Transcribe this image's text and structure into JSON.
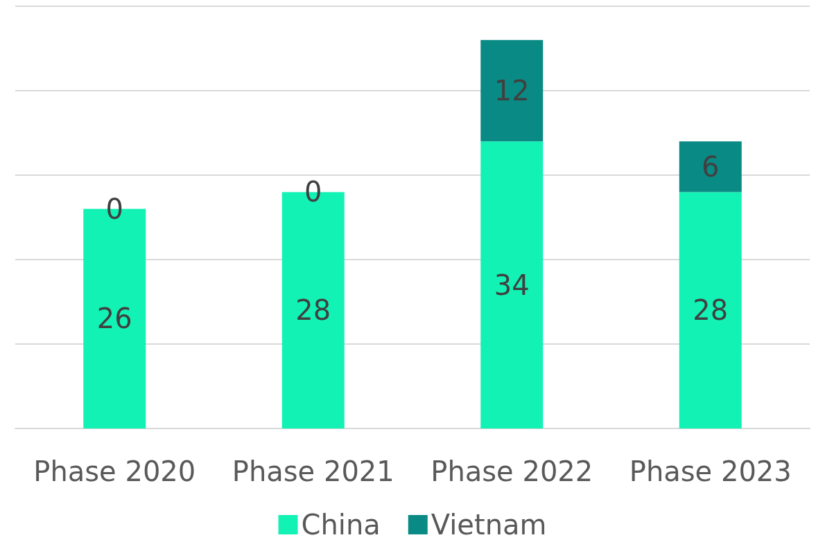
{
  "chart_data": {
    "type": "bar",
    "stacked": true,
    "categories": [
      "Phase 2020",
      "Phase 2021",
      "Phase 2022",
      "Phase 2023"
    ],
    "series": [
      {
        "name": "China",
        "color": "#12f2b4",
        "values": [
          26,
          28,
          34,
          28
        ]
      },
      {
        "name": "Vietnam",
        "color": "#0a8a84",
        "values": [
          0,
          0,
          12,
          6
        ]
      }
    ],
    "ylim": [
      0,
      50
    ],
    "yticks": [
      {
        "value": 0,
        "label": null
      },
      {
        "value": 10,
        "label": null
      },
      {
        "value": 20,
        "label": null
      },
      {
        "value": 30,
        "label": null
      },
      {
        "value": 40,
        "label": null
      },
      {
        "value": 50,
        "label": null
      }
    ],
    "tick_labels": "x",
    "grid": "y",
    "legend": "bottom",
    "data_labels": true
  }
}
